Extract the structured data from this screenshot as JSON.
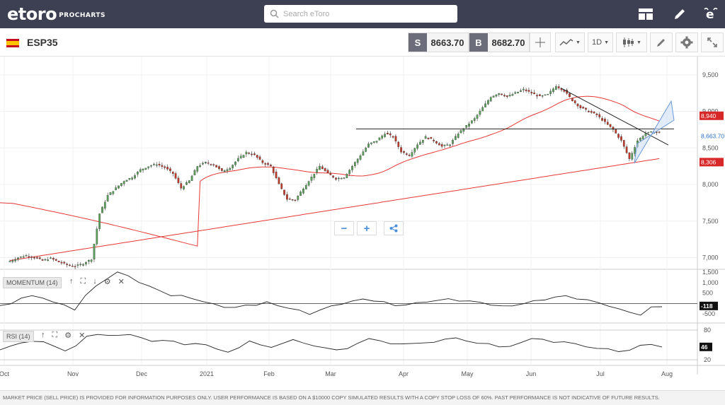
{
  "header": {
    "logo_text": "etoro",
    "logo_sub": "PROCHARTS",
    "search_placeholder": "Search eToro"
  },
  "toolbar": {
    "instrument": "ESP35",
    "sell_label": "S",
    "sell_price": "8663.70",
    "buy_label": "B",
    "buy_price": "8682.70",
    "timeframe": "1D"
  },
  "colors": {
    "header_bg": "#3c4052",
    "up_candle": "#5aa05a",
    "down_candle": "#c0392b",
    "ma_line": "#e53935",
    "channel_fill": "#cfe0f7"
  },
  "icons": [
    "search-icon",
    "layout-icon",
    "pencil-icon",
    "etoro-e-icon",
    "crosshair-icon",
    "line-chart-icon",
    "candles-icon",
    "drawing-icon",
    "gear-icon",
    "expand-icon",
    "share-icon",
    "arrow-up-icon",
    "arrow-down-icon",
    "fullscreen-icon",
    "close-icon"
  ],
  "panels": {
    "momentum_label": "MOMENTUM (14)",
    "rsi_label": "RSI (14)",
    "zoom_out": "−",
    "zoom_in": "+"
  },
  "chart_data": {
    "type": "candlestick",
    "instrument": "ESP35",
    "x_ticks": [
      "Oct",
      "Nov",
      "Dec",
      "2021",
      "Feb",
      "Mar",
      "Apr",
      "May",
      "Jun",
      "Jul",
      "Aug"
    ],
    "y_ticks": [
      "9,500",
      "9,000",
      "8,500",
      "8,000",
      "7,500",
      "7,000"
    ],
    "ylim": [
      6850,
      9750
    ],
    "price_labels": {
      "upper": "8,940",
      "current": "8,663.70",
      "lower": "8,306"
    },
    "close_path": [
      6950,
      7000,
      7030,
      7000,
      6960,
      6990,
      6940,
      6900,
      6880,
      6920,
      6980,
      7600,
      7850,
      7950,
      8050,
      8100,
      8200,
      8250,
      8280,
      8230,
      8150,
      7950,
      8050,
      8250,
      8300,
      8270,
      8180,
      8230,
      8350,
      8440,
      8400,
      8300,
      8250,
      8000,
      7800,
      7790,
      7950,
      8100,
      8250,
      8150,
      8080,
      8100,
      8250,
      8400,
      8550,
      8600,
      8700,
      8650,
      8450,
      8400,
      8550,
      8650,
      8600,
      8520,
      8550,
      8700,
      8800,
      8900,
      9050,
      9200,
      9250,
      9200,
      9250,
      9300,
      9250,
      9200,
      9230,
      9350,
      9280,
      9150,
      9050,
      9000,
      8950,
      8850,
      8750,
      8600,
      8350,
      8600,
      8700,
      8720,
      8700
    ],
    "momentum": {
      "label": "MOMENTUM (14)",
      "y_ticks": [
        "1,500",
        "1,000",
        "500",
        "-500"
      ],
      "ylim": [
        -900,
        1600
      ],
      "current": "-118",
      "values": [
        -100,
        -50,
        300,
        350,
        250,
        100,
        -100,
        -300,
        400,
        800,
        1200,
        1500,
        1300,
        1050,
        800,
        600,
        400,
        350,
        250,
        100,
        -50,
        -150,
        -200,
        -100,
        -50,
        50,
        -100,
        -200,
        -350,
        -500,
        -300,
        -150,
        0,
        100,
        200,
        150,
        50,
        -100,
        -50,
        0,
        100,
        150,
        200,
        150,
        100,
        50,
        -50,
        -150,
        -100,
        0,
        100,
        200,
        300,
        350,
        250,
        150,
        50,
        -100,
        -300,
        -400,
        -550,
        -200,
        -118
      ]
    },
    "rsi": {
      "label": "RSI (14)",
      "y_ticks": [
        "80",
        "20"
      ],
      "ylim": [
        10,
        90
      ],
      "current": "46",
      "values": [
        40,
        45,
        55,
        60,
        55,
        45,
        40,
        50,
        65,
        70,
        72,
        70,
        68,
        65,
        60,
        58,
        55,
        52,
        55,
        48,
        40,
        38,
        45,
        55,
        50,
        48,
        52,
        58,
        55,
        50,
        42,
        38,
        45,
        55,
        60,
        58,
        55,
        52,
        50,
        55,
        58,
        60,
        62,
        60,
        55,
        50,
        45,
        50,
        55,
        60,
        62,
        58,
        55,
        50,
        48,
        45,
        40,
        35,
        42,
        50,
        48,
        46
      ]
    }
  },
  "disclaimer": "MARKET PRICE (SELL PRICE) IS PROVIDED FOR INFORMATION PURPOSES ONLY. USER PERFORMANCE IS BASED ON A $10000 COPY SIMULATED RESULTS WITH A COPY STOP LOSS OF 60%. PAST PERFORMANCE IS NOT INDICATIVE OF FUTURE RESULTS."
}
